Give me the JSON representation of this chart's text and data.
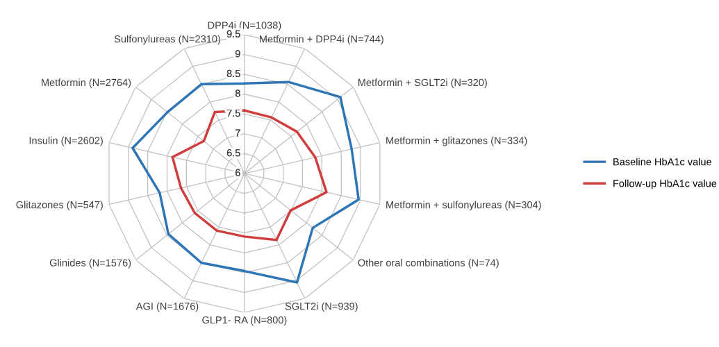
{
  "chart_data": {
    "type": "radar",
    "categories": [
      "DPP4i (N=1038)",
      "Metformin + DPP4i (N=744)",
      "Metformin + SGLT2i (N=320)",
      "Metformin + glitazones (N=334)",
      "Metformin + sulfonylureas (N=304)",
      "Other oral combinations (N=74)",
      "SGLT2i (N=939)",
      "GLP1- RA (N=800)",
      "AGI (N=1676)",
      "Glinides (N=1576)",
      "Glitazones (N=547)",
      "Insulin (N=2602)",
      "Metformin (N=2764)",
      "Sulfonylureas (N=2310)"
    ],
    "series": [
      {
        "name": "Baseline HbA1c value",
        "color": "#2e75b6",
        "values": [
          8.27,
          8.56,
          9.09,
          8.77,
          8.95,
          8.2,
          9.05,
          8.46,
          8.5,
          8.45,
          8.19,
          8.89,
          8.48,
          8.5
        ]
      },
      {
        "name": "Follow-up HbA1c value",
        "color": "#d13c3c",
        "values": [
          7.59,
          7.57,
          7.69,
          7.83,
          8.12,
          7.49,
          7.86,
          7.59,
          7.6,
          7.6,
          7.64,
          7.86,
          7.31,
          7.72
        ]
      }
    ],
    "ylim": [
      6,
      9.5
    ],
    "yticks": [
      6,
      6.5,
      7,
      7.5,
      8,
      8.5,
      9,
      9.5
    ],
    "grid": true,
    "legend": "right",
    "marker": "none",
    "line_style": "solid"
  }
}
